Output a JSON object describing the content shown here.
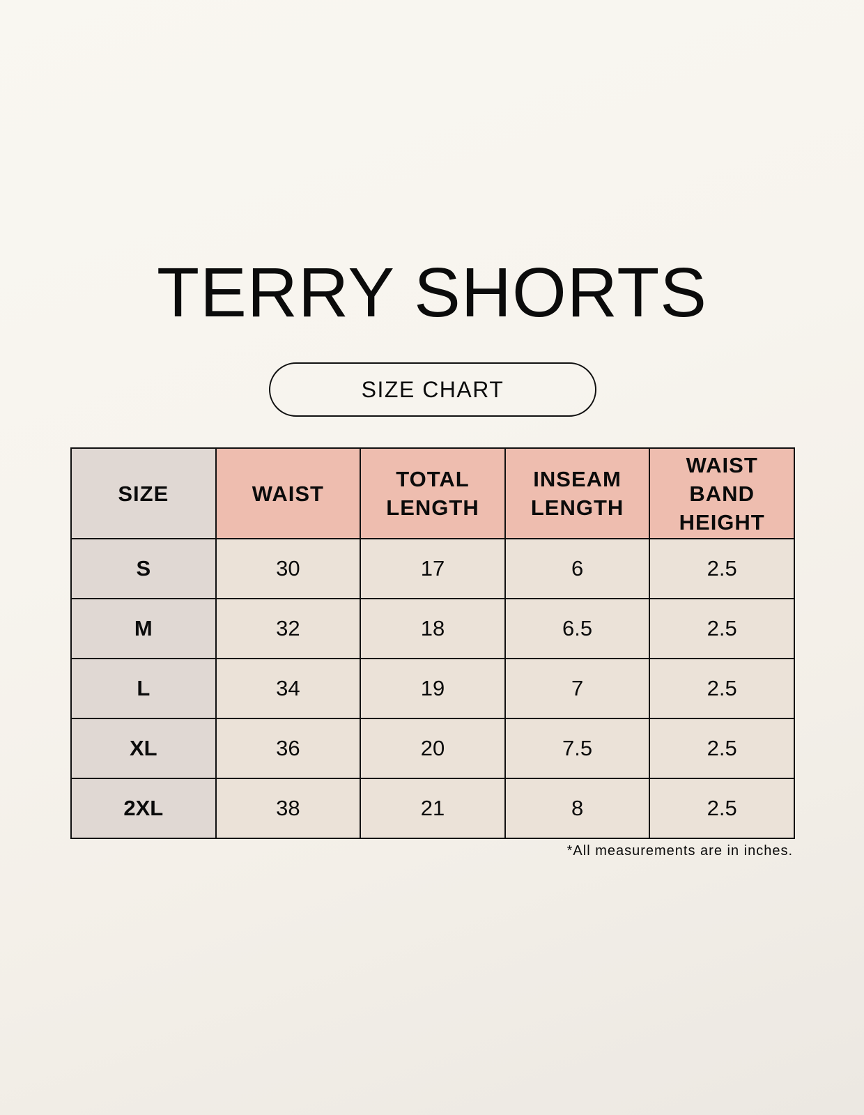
{
  "title": "TERRY SHORTS",
  "subtitle": "SIZE CHART",
  "colors": {
    "header_accent": "#eebdaf",
    "size_column": "#e0d8d3",
    "cell": "#ebe2d8"
  },
  "table": {
    "headers": [
      "SIZE",
      "WAIST",
      "TOTAL LENGTH",
      "INSEAM LENGTH",
      "WAIST BAND HEIGHT"
    ],
    "rows": [
      [
        "S",
        "30",
        "17",
        "6",
        "2.5"
      ],
      [
        "M",
        "32",
        "18",
        "6.5",
        "2.5"
      ],
      [
        "L",
        "34",
        "19",
        "7",
        "2.5"
      ],
      [
        "XL",
        "36",
        "20",
        "7.5",
        "2.5"
      ],
      [
        "2XL",
        "38",
        "21",
        "8",
        "2.5"
      ]
    ]
  },
  "footnote": "*All measurements are in inches."
}
